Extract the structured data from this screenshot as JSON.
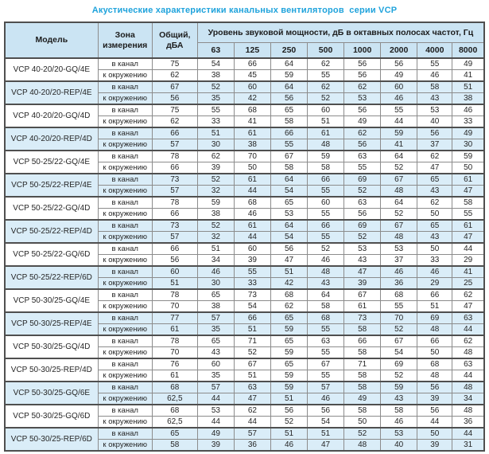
{
  "title": "Акустические характеристики канальных вентиляторов  серии VCP",
  "colors": {
    "title": "#1fa3dc",
    "header_bg": "#cbe4f3",
    "stripe_bg": "#daedf8",
    "border": "#8c8c8c",
    "border_heavy": "#4f4f4f"
  },
  "table": {
    "headers": {
      "model": "Модель",
      "zone": "Зона измерения",
      "total": "Общий, дБА",
      "spl_group": "Уровень звуковой мощности, дБ в октавных полосах частот, Гц",
      "frequencies": [
        "63",
        "125",
        "250",
        "500",
        "1000",
        "2000",
        "4000",
        "8000"
      ]
    },
    "models": [
      {
        "name": "VCP 40-20/20-GQ/4E",
        "shaded": false,
        "rows": [
          {
            "zone": "в канал",
            "total": "75",
            "bands": [
              54,
              66,
              64,
              62,
              56,
              56,
              55,
              49
            ]
          },
          {
            "zone": "к окружению",
            "total": "62",
            "bands": [
              38,
              45,
              59,
              55,
              56,
              49,
              46,
              41
            ]
          }
        ]
      },
      {
        "name": "VCP 40-20/20-REP/4E",
        "shaded": true,
        "rows": [
          {
            "zone": "в канал",
            "total": "67",
            "bands": [
              52,
              60,
              64,
              62,
              62,
              60,
              58,
              51
            ]
          },
          {
            "zone": "к окружению",
            "total": "56",
            "bands": [
              35,
              42,
              56,
              52,
              53,
              46,
              43,
              38
            ]
          }
        ]
      },
      {
        "name": "VCP 40-20/20-GQ/4D",
        "shaded": false,
        "rows": [
          {
            "zone": "в канал",
            "total": "75",
            "bands": [
              55,
              68,
              65,
              60,
              56,
              55,
              53,
              46
            ]
          },
          {
            "zone": "к окружению",
            "total": "62",
            "bands": [
              33,
              41,
              58,
              51,
              49,
              44,
              40,
              33
            ]
          }
        ]
      },
      {
        "name": "VCP 40-20/20-REP/4D",
        "shaded": true,
        "rows": [
          {
            "zone": "в канал",
            "total": "66",
            "bands": [
              51,
              61,
              66,
              61,
              62,
              59,
              56,
              49
            ]
          },
          {
            "zone": "к окружению",
            "total": "57",
            "bands": [
              30,
              38,
              55,
              48,
              56,
              41,
              37,
              30
            ]
          }
        ]
      },
      {
        "name": "VCP 50-25/22-GQ/4E",
        "shaded": false,
        "rows": [
          {
            "zone": "в канал",
            "total": "78",
            "bands": [
              62,
              70,
              67,
              59,
              63,
              64,
              62,
              59
            ]
          },
          {
            "zone": "к окружению",
            "total": "66",
            "bands": [
              39,
              50,
              58,
              58,
              55,
              52,
              47,
              50
            ]
          }
        ]
      },
      {
        "name": "VCP 50-25/22-REP/4E",
        "shaded": true,
        "rows": [
          {
            "zone": "в канал",
            "total": "73",
            "bands": [
              52,
              61,
              64,
              66,
              69,
              67,
              65,
              61
            ]
          },
          {
            "zone": "к окружению",
            "total": "57",
            "bands": [
              32,
              44,
              54,
              55,
              52,
              48,
              43,
              47
            ]
          }
        ]
      },
      {
        "name": "VCP 50-25/22-GQ/4D",
        "shaded": false,
        "rows": [
          {
            "zone": "в канал",
            "total": "78",
            "bands": [
              59,
              68,
              65,
              60,
              63,
              64,
              62,
              58
            ]
          },
          {
            "zone": "к окружению",
            "total": "66",
            "bands": [
              38,
              46,
              53,
              55,
              56,
              52,
              50,
              55
            ]
          }
        ]
      },
      {
        "name": "VCP 50-25/22-REP/4D",
        "shaded": true,
        "rows": [
          {
            "zone": "в канал",
            "total": "73",
            "bands": [
              52,
              61,
              64,
              66,
              69,
              67,
              65,
              61
            ]
          },
          {
            "zone": "к окружению",
            "total": "57",
            "bands": [
              32,
              44,
              54,
              55,
              52,
              48,
              43,
              47
            ]
          }
        ]
      },
      {
        "name": "VCP 50-25/22-GQ/6D",
        "shaded": false,
        "rows": [
          {
            "zone": "в канал",
            "total": "66",
            "bands": [
              51,
              60,
              56,
              52,
              53,
              53,
              50,
              44
            ]
          },
          {
            "zone": "к окружению",
            "total": "56",
            "bands": [
              34,
              39,
              47,
              46,
              43,
              37,
              33,
              29
            ]
          }
        ]
      },
      {
        "name": "VCP 50-25/22-REP/6D",
        "shaded": true,
        "rows": [
          {
            "zone": "в канал",
            "total": "60",
            "bands": [
              46,
              55,
              51,
              48,
              47,
              46,
              46,
              41
            ]
          },
          {
            "zone": "к окружению",
            "total": "51",
            "bands": [
              30,
              33,
              42,
              43,
              39,
              36,
              29,
              25
            ]
          }
        ]
      },
      {
        "name": "VCP 50-30/25-GQ/4E",
        "shaded": false,
        "rows": [
          {
            "zone": "в канал",
            "total": "78",
            "bands": [
              65,
              73,
              68,
              64,
              67,
              68,
              66,
              62
            ]
          },
          {
            "zone": "к окружению",
            "total": "70",
            "bands": [
              38,
              54,
              62,
              58,
              61,
              55,
              51,
              47
            ]
          }
        ]
      },
      {
        "name": "VCP 50-30/25-REP/4E",
        "shaded": true,
        "rows": [
          {
            "zone": "в канал",
            "total": "77",
            "bands": [
              57,
              66,
              65,
              68,
              73,
              70,
              69,
              63
            ]
          },
          {
            "zone": "к окружению",
            "total": "61",
            "bands": [
              35,
              51,
              59,
              55,
              58,
              52,
              48,
              44
            ]
          }
        ]
      },
      {
        "name": "VCP 50-30/25-GQ/4D",
        "shaded": false,
        "rows": [
          {
            "zone": "в канал",
            "total": "78",
            "bands": [
              65,
              71,
              65,
              63,
              66,
              67,
              66,
              62
            ]
          },
          {
            "zone": "к окружению",
            "total": "70",
            "bands": [
              43,
              52,
              59,
              55,
              58,
              54,
              50,
              48
            ]
          }
        ]
      },
      {
        "name": "VCP 50-30/25-REP/4D",
        "shaded": false,
        "rows": [
          {
            "zone": "в канал",
            "total": "76",
            "bands": [
              60,
              67,
              65,
              67,
              71,
              69,
              68,
              63
            ]
          },
          {
            "zone": "к окружению",
            "total": "61",
            "bands": [
              35,
              51,
              59,
              55,
              58,
              52,
              48,
              44
            ]
          }
        ]
      },
      {
        "name": "VCP 50-30/25-GQ/6E",
        "shaded": true,
        "rows": [
          {
            "zone": "в канал",
            "total": "68",
            "bands": [
              57,
              63,
              59,
              57,
              58,
              59,
              56,
              48
            ]
          },
          {
            "zone": "к окружению",
            "total": "62,5",
            "bands": [
              44,
              47,
              51,
              46,
              49,
              43,
              39,
              34
            ]
          }
        ]
      },
      {
        "name": "VCP 50-30/25-GQ/6D",
        "shaded": false,
        "rows": [
          {
            "zone": "в канал",
            "total": "68",
            "bands": [
              53,
              62,
              56,
              56,
              58,
              58,
              56,
              48
            ]
          },
          {
            "zone": "к окружению",
            "total": "62,5",
            "bands": [
              44,
              44,
              52,
              54,
              50,
              46,
              44,
              36
            ]
          }
        ]
      },
      {
        "name": "VCP 50-30/25-REP/6D",
        "shaded": true,
        "rows": [
          {
            "zone": "в канал",
            "total": "65",
            "bands": [
              49,
              57,
              51,
              51,
              52,
              53,
              50,
              44
            ]
          },
          {
            "zone": "к окружению",
            "total": "58",
            "bands": [
              39,
              36,
              46,
              47,
              48,
              40,
              39,
              31
            ]
          }
        ]
      }
    ]
  }
}
